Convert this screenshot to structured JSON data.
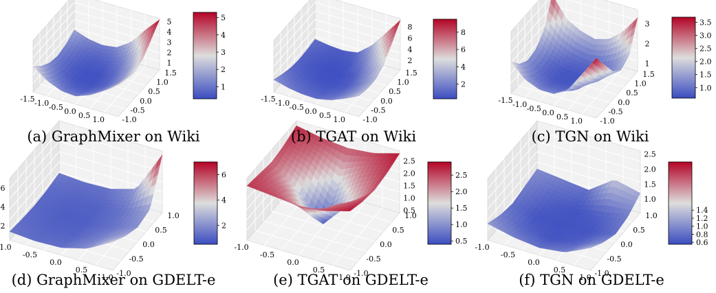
{
  "chart_data": [
    {
      "type": "surface3d",
      "caption": "(a) GraphMixer on Wiki",
      "x_ticks": [
        "-1.5",
        "-1.0",
        "-0.5",
        "0.0",
        "0.5",
        "1.0"
      ],
      "y_ticks": [
        "-1.0",
        "-0.5",
        "0.0",
        "0.5",
        "1.0",
        "1.5"
      ],
      "z_ticks": [
        "1",
        "2",
        "3",
        "4",
        "5"
      ],
      "colorbar_ticks": [
        "1",
        "2",
        "3",
        "4",
        "5"
      ],
      "z_range": [
        0.3,
        5.3
      ],
      "grid_x": [
        -1.5,
        -1.0,
        -0.5,
        0.0,
        0.5,
        1.0,
        1.5
      ],
      "grid_y": [
        -1.0,
        -0.5,
        0.0,
        0.5,
        1.0,
        1.5
      ],
      "z_values": [
        [
          2.8,
          1.9,
          1.3,
          1.1,
          1.3,
          1.8
        ],
        [
          1.8,
          1.1,
          0.7,
          0.6,
          0.8,
          1.3
        ],
        [
          1.2,
          0.7,
          0.4,
          0.4,
          0.6,
          1.1
        ],
        [
          1.1,
          0.6,
          0.4,
          0.4,
          0.7,
          1.3
        ],
        [
          1.6,
          1.0,
          0.7,
          0.8,
          1.2,
          2.2
        ],
        [
          2.4,
          1.8,
          1.5,
          1.7,
          2.4,
          3.8
        ],
        [
          3.4,
          3.0,
          2.8,
          3.2,
          4.2,
          5.2
        ]
      ]
    },
    {
      "type": "surface3d",
      "caption": "(b) TGAT on Wiki",
      "x_ticks": [
        "-1.5",
        "-1.0",
        "-0.5",
        "0.0",
        "0.5",
        "1.0"
      ],
      "y_ticks": [
        "-1.0",
        "-0.5",
        "0.0",
        "0.5",
        "1.0",
        "1.5"
      ],
      "z_ticks": [
        "2",
        "4",
        "6",
        "8"
      ],
      "colorbar_ticks": [
        "2",
        "4",
        "6",
        "8"
      ],
      "z_range": [
        0.3,
        9.5
      ],
      "grid_x": [
        -1.5,
        -1.0,
        -0.5,
        0.0,
        0.5,
        1.0,
        1.5
      ],
      "grid_y": [
        -1.0,
        -0.5,
        0.0,
        0.5,
        1.0,
        1.5
      ],
      "z_values": [
        [
          2.5,
          1.8,
          1.2,
          1.0,
          1.1,
          1.4
        ],
        [
          1.8,
          1.2,
          0.8,
          0.6,
          0.7,
          1.0
        ],
        [
          1.4,
          0.9,
          0.5,
          0.4,
          0.5,
          0.8
        ],
        [
          1.3,
          0.8,
          0.5,
          0.4,
          0.6,
          1.2
        ],
        [
          1.8,
          1.2,
          0.8,
          0.9,
          1.8,
          3.2
        ],
        [
          2.8,
          2.2,
          2.0,
          2.6,
          4.2,
          6.2
        ],
        [
          4.0,
          3.6,
          3.6,
          4.6,
          6.8,
          9.2
        ]
      ]
    },
    {
      "type": "surface3d",
      "caption": "(c) TGN on Wiki",
      "x_ticks": [
        "-1.5",
        "-1.0",
        "-0.5",
        "0.0",
        "0.5",
        "1.0"
      ],
      "y_ticks": [
        "-1.0",
        "-0.5",
        "0.0",
        "0.5",
        "1.0",
        "1.5"
      ],
      "z_ticks": [
        "1",
        "2",
        "3"
      ],
      "colorbar_ticks": [
        "1.0",
        "1.5",
        "2.0",
        "2.5",
        "3.0",
        "3.5"
      ],
      "z_range": [
        0.6,
        3.7
      ],
      "grid_x": [
        -1.5,
        -1.0,
        -0.5,
        0.0,
        0.5,
        1.0,
        1.5
      ],
      "grid_y": [
        -1.0,
        -0.5,
        0.0,
        0.5,
        1.0,
        1.5
      ],
      "z_values": [
        [
          2.2,
          1.6,
          1.3,
          1.4,
          1.9,
          3.2
        ],
        [
          1.5,
          1.1,
          0.9,
          0.9,
          1.3,
          2.2
        ],
        [
          1.2,
          0.9,
          0.7,
          0.7,
          1.0,
          1.8
        ],
        [
          1.2,
          0.9,
          0.7,
          0.7,
          0.9,
          1.6
        ],
        [
          1.6,
          1.1,
          0.9,
          0.8,
          1.0,
          1.8
        ],
        [
          2.6,
          1.8,
          1.3,
          1.1,
          1.3,
          2.4
        ],
        [
          3.6,
          2.8,
          2.0,
          1.6,
          1.9,
          3.3
        ]
      ]
    },
    {
      "type": "surface3d",
      "caption": "(d) GraphMixer on GDELT-e",
      "x_ticks": [
        "-1.0",
        "-0.5",
        "0.0",
        "0.5",
        "1.0"
      ],
      "y_ticks": [
        "-1.0",
        "-0.5",
        "0.0",
        "0.5",
        "1.0"
      ],
      "z_ticks": [
        "2",
        "4",
        "6"
      ],
      "colorbar_ticks": [
        "2",
        "4",
        "6"
      ],
      "z_range": [
        0.5,
        7.0
      ],
      "grid_x": [
        -1.0,
        -0.5,
        0.0,
        0.5,
        1.0
      ],
      "grid_y": [
        -1.0,
        -0.5,
        0.0,
        0.5,
        1.0
      ],
      "z_values": [
        [
          1.4,
          1.2,
          1.1,
          1.2,
          1.5
        ],
        [
          1.2,
          1.0,
          0.9,
          1.0,
          1.3
        ],
        [
          1.3,
          1.0,
          0.9,
          1.0,
          1.4
        ],
        [
          2.0,
          1.6,
          1.3,
          1.4,
          2.2
        ],
        [
          3.5,
          2.6,
          2.0,
          2.4,
          6.6
        ]
      ]
    },
    {
      "type": "surface3d",
      "caption": "(e) TGAT on GDELT-e",
      "x_ticks": [
        "-1.0",
        "-0.5",
        "0.0",
        "0.5",
        "1.0"
      ],
      "y_ticks": [
        "-1.0",
        "-0.5",
        "0.0",
        "0.5",
        "1.0"
      ],
      "z_ticks": [
        "0.5",
        "1.0",
        "1.5",
        "2.0",
        "2.5"
      ],
      "colorbar_ticks": [
        "0.5",
        "1.0",
        "1.5",
        "2.0",
        "2.5"
      ],
      "z_range": [
        0.4,
        2.9
      ],
      "grid_x": [
        -1.0,
        -0.5,
        0.0,
        0.5,
        1.0
      ],
      "grid_y": [
        -1.0,
        -0.5,
        0.0,
        0.5,
        1.0
      ],
      "z_values": [
        [
          2.6,
          2.5,
          2.4,
          2.5,
          2.7
        ],
        [
          2.5,
          2.2,
          1.6,
          2.2,
          2.5
        ],
        [
          2.4,
          1.4,
          0.5,
          1.4,
          2.4
        ],
        [
          2.5,
          2.2,
          1.6,
          2.2,
          2.5
        ],
        [
          2.8,
          2.6,
          2.5,
          2.6,
          2.8
        ]
      ]
    },
    {
      "type": "surface3d",
      "caption": "(f) TGN on GDELT-e",
      "x_ticks": [
        "-1.0",
        "-0.5",
        "0.0",
        "0.5",
        "1.0"
      ],
      "y_ticks": [
        "-1.0",
        "-0.5",
        "0.0",
        "0.5",
        "1.0"
      ],
      "z_ticks": [
        "1.0",
        "1.5",
        "2.0",
        "2.5"
      ],
      "colorbar_ticks": [
        "0.6",
        "0.8",
        "1.0",
        "1.2",
        "1.4"
      ],
      "z_range": [
        0.55,
        2.6
      ],
      "grid_x": [
        -1.0,
        -0.5,
        0.0,
        0.5,
        1.0
      ],
      "grid_y": [
        -1.0,
        -0.5,
        0.0,
        0.5,
        1.0
      ],
      "z_values": [
        [
          1.1,
          0.9,
          0.8,
          0.9,
          1.0
        ],
        [
          0.9,
          0.7,
          0.6,
          0.7,
          0.9
        ],
        [
          0.8,
          0.6,
          0.6,
          0.6,
          0.8
        ],
        [
          0.9,
          0.7,
          0.6,
          0.7,
          1.4
        ],
        [
          1.3,
          1.0,
          0.8,
          0.9,
          1.2
        ]
      ]
    }
  ],
  "colormap": "coolwarm",
  "colors": {
    "low": "#3b4cc0",
    "mid": "#dddddd",
    "high": "#b40426",
    "pane": "#f2f2f2",
    "pane_dark": "#e6e6e6",
    "grid": "#ffffff"
  }
}
